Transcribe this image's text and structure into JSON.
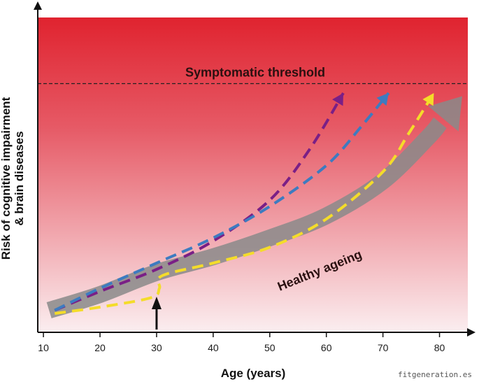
{
  "chart_data": {
    "type": "line",
    "title": "",
    "xlabel": "Age (years)",
    "ylabel_lines": [
      "Risk of cognitive impairment",
      "& brain diseases"
    ],
    "xlim": [
      9,
      85
    ],
    "ylim": [
      0,
      100
    ],
    "x_ticks": [
      10,
      20,
      30,
      40,
      50,
      60,
      70,
      80
    ],
    "threshold": {
      "label": "Symptomatic threshold",
      "y": 79
    },
    "series": [
      {
        "name": "Healthy ageing",
        "color": "#8a8a8a",
        "style": "solid-arrow",
        "points": [
          [
            11,
            7
          ],
          [
            20,
            12
          ],
          [
            30,
            19
          ],
          [
            40,
            24
          ],
          [
            50,
            30
          ],
          [
            60,
            37
          ],
          [
            70,
            48
          ],
          [
            78,
            62
          ],
          [
            84,
            75
          ]
        ]
      },
      {
        "name": "",
        "color": "#7a1f86",
        "style": "dashed-arrow",
        "points": [
          [
            12,
            7
          ],
          [
            20,
            13
          ],
          [
            30,
            20
          ],
          [
            40,
            29
          ],
          [
            50,
            42
          ],
          [
            57,
            58
          ],
          [
            63,
            76
          ]
        ]
      },
      {
        "name": "",
        "color": "#3d7bc0",
        "style": "dashed-arrow",
        "points": [
          [
            12,
            7
          ],
          [
            20,
            14
          ],
          [
            30,
            22
          ],
          [
            40,
            30
          ],
          [
            50,
            40
          ],
          [
            60,
            53
          ],
          [
            66,
            65
          ],
          [
            71,
            76
          ]
        ]
      },
      {
        "name": "",
        "color": "#f4dc2a",
        "style": "dashed-arrow",
        "points": [
          [
            12,
            6
          ],
          [
            20,
            8
          ],
          [
            29,
            11
          ],
          [
            30.5,
            14
          ],
          [
            31,
            18
          ],
          [
            40,
            22
          ],
          [
            50,
            27
          ],
          [
            60,
            36
          ],
          [
            70,
            51
          ],
          [
            74.5,
            63
          ],
          [
            79,
            76
          ]
        ]
      }
    ],
    "event_marker": {
      "x": 30
    },
    "colors": {
      "top": "#e0232f",
      "bottom": "#fbeef0",
      "axis": "#111111"
    }
  },
  "watermark": "fitgeneration.es"
}
